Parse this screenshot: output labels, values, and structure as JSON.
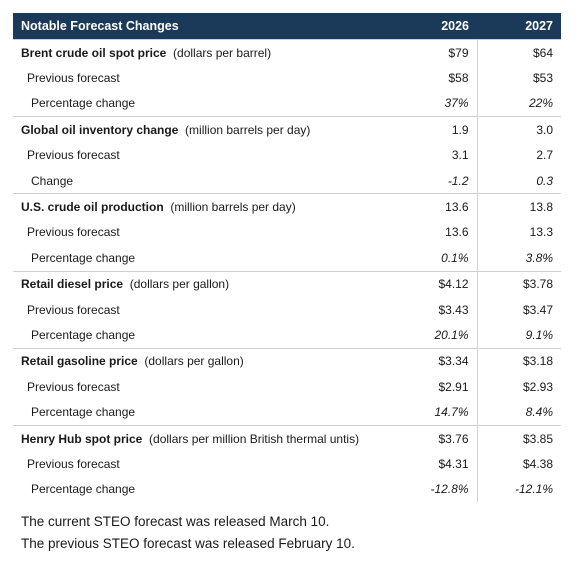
{
  "table": {
    "header": {
      "title": "Notable Forecast Changes",
      "year1": "2026",
      "year2": "2027"
    },
    "groups": [
      {
        "name": "Brent crude oil spot price",
        "unit": "(dollars per barrel)",
        "current": [
          "$79",
          "$64"
        ],
        "previous_label": "Previous forecast",
        "previous": [
          "$58",
          "$53"
        ],
        "change_label": "Percentage change",
        "change": [
          "37%",
          "22%"
        ]
      },
      {
        "name": "Global oil inventory change",
        "unit": "(million barrels per day)",
        "current": [
          "1.9",
          "3.0"
        ],
        "previous_label": "Previous forecast",
        "previous": [
          "3.1",
          "2.7"
        ],
        "change_label": "Change",
        "change": [
          "-1.2",
          "0.3"
        ]
      },
      {
        "name": "U.S. crude oil production",
        "unit": "(million barrels per day)",
        "current": [
          "13.6",
          "13.8"
        ],
        "previous_label": "Previous forecast",
        "previous": [
          "13.6",
          "13.3"
        ],
        "change_label": "Percentage change",
        "change": [
          "0.1%",
          "3.8%"
        ]
      },
      {
        "name": "Retail diesel price",
        "unit": "(dollars per gallon)",
        "current": [
          "$4.12",
          "$3.78"
        ],
        "previous_label": "Previous forecast",
        "previous": [
          "$3.43",
          "$3.47"
        ],
        "change_label": "Percentage change",
        "change": [
          "20.1%",
          "9.1%"
        ]
      },
      {
        "name": "Retail gasoline price",
        "unit": "(dollars per gallon)",
        "current": [
          "$3.34",
          "$3.18"
        ],
        "previous_label": "Previous forecast",
        "previous": [
          "$2.91",
          "$2.93"
        ],
        "change_label": "Percentage change",
        "change": [
          "14.7%",
          "8.4%"
        ]
      },
      {
        "name": "Henry Hub spot price",
        "unit": "(dollars per million British thermal untis)",
        "current": [
          "$3.76",
          "$3.85"
        ],
        "previous_label": "Previous forecast",
        "previous": [
          "$4.31",
          "$4.38"
        ],
        "change_label": "Percentage change",
        "change": [
          "-12.8%",
          "-12.1%"
        ]
      }
    ]
  },
  "notes": {
    "current_release": "The current STEO forecast was released March 10.",
    "previous_release": "The previous STEO forecast was released February 10."
  }
}
